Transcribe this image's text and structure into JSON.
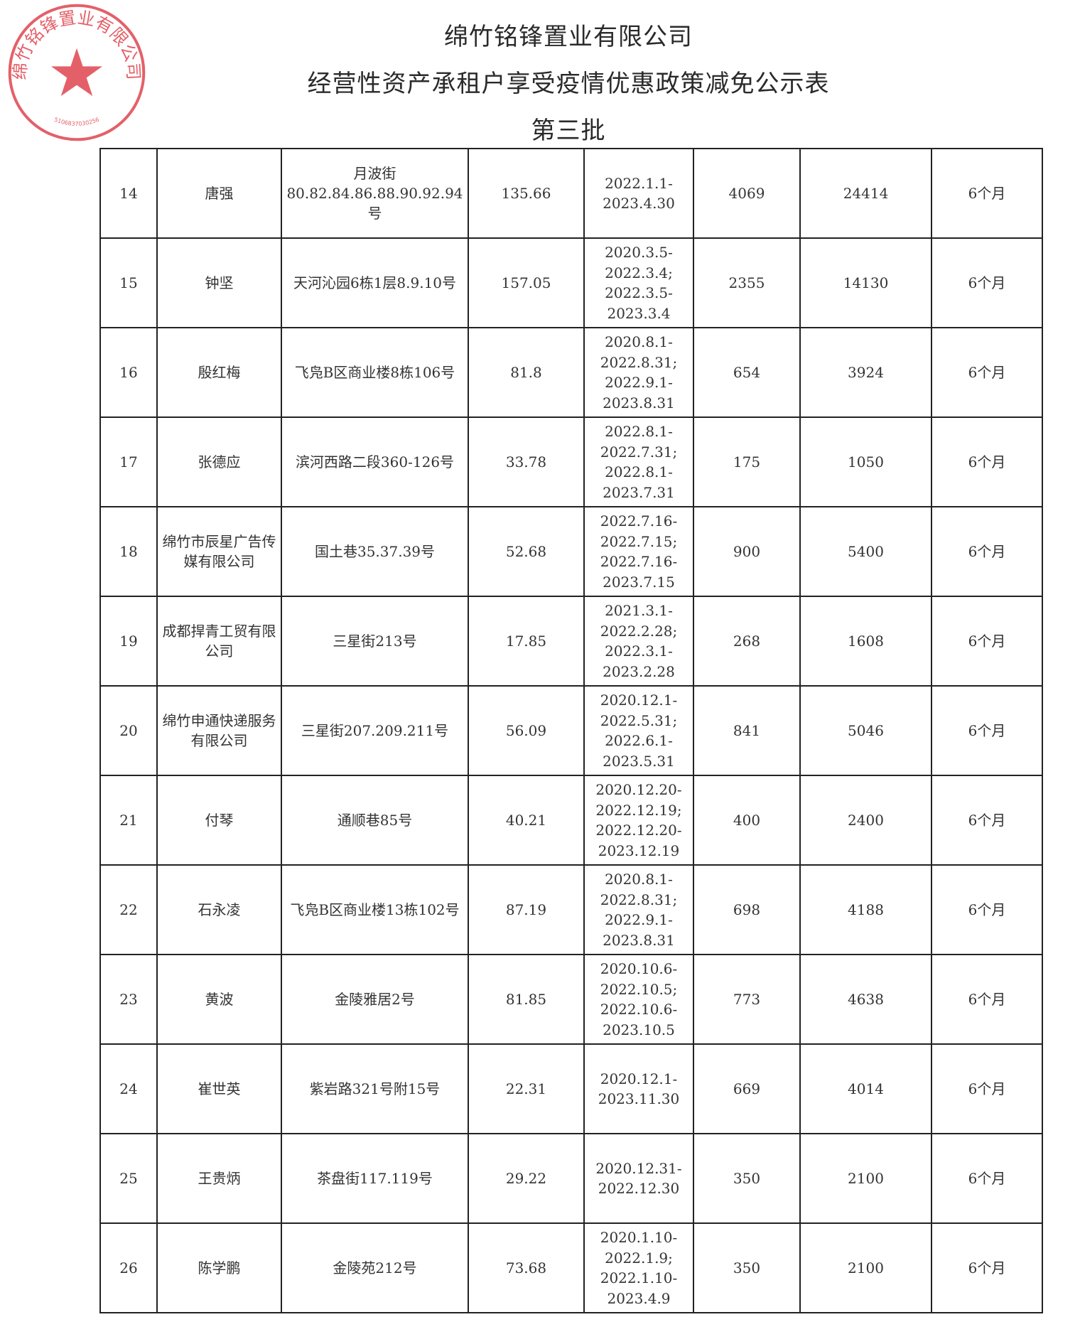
{
  "header": {
    "company": "绵竹铭锋置业有限公司",
    "title": "经营性资产承租户享受疫情优惠政策减免公示表",
    "batch": "第三批"
  },
  "stamp": {
    "text": "绵竹铭锋置业有限公司",
    "code": "5106837030256",
    "color": "#e0454f"
  },
  "rows": [
    {
      "no": "14",
      "tenant": "唐强",
      "address": "月波街80.82.84.86.88.90.92.94号",
      "area": "135.66",
      "period": [
        "2022.1.1-",
        "2023.4.30"
      ],
      "monthly": "4069",
      "total": "24414",
      "months": "6个月"
    },
    {
      "no": "15",
      "tenant": "钟坚",
      "address": "天河沁园6栋1层8.9.10号",
      "area": "157.05",
      "period": [
        "2020.3.5-",
        "2022.3.4;",
        "2022.3.5-",
        "2023.3.4"
      ],
      "monthly": "2355",
      "total": "14130",
      "months": "6个月"
    },
    {
      "no": "16",
      "tenant": "殷红梅",
      "address": "飞凫B区商业楼8栋106号",
      "area": "81.8",
      "period": [
        "2020.8.1-",
        "2022.8.31;",
        "2022.9.1-",
        "2023.8.31"
      ],
      "monthly": "654",
      "total": "3924",
      "months": "6个月"
    },
    {
      "no": "17",
      "tenant": "张德应",
      "address": "滨河西路二段360-126号",
      "area": "33.78",
      "period": [
        "2022.8.1-",
        "2022.7.31;",
        "2022.8.1-",
        "2023.7.31"
      ],
      "monthly": "175",
      "total": "1050",
      "months": "6个月"
    },
    {
      "no": "18",
      "tenant": "绵竹市辰星广告传媒有限公司",
      "address": "国土巷35.37.39号",
      "area": "52.68",
      "period": [
        "2022.7.16-",
        "2022.7.15;",
        "2022.7.16-",
        "2023.7.15"
      ],
      "monthly": "900",
      "total": "5400",
      "months": "6个月"
    },
    {
      "no": "19",
      "tenant": "成都捍青工贸有限公司",
      "address": "三星街213号",
      "area": "17.85",
      "period": [
        "2021.3.1-",
        "2022.2.28;",
        "2022.3.1-",
        "2023.2.28"
      ],
      "monthly": "268",
      "total": "1608",
      "months": "6个月"
    },
    {
      "no": "20",
      "tenant": "绵竹申通快递服务有限公司",
      "address": "三星街207.209.211号",
      "area": "56.09",
      "period": [
        "2020.12.1-",
        "2022.5.31;",
        "2022.6.1-",
        "2023.5.31"
      ],
      "monthly": "841",
      "total": "5046",
      "months": "6个月"
    },
    {
      "no": "21",
      "tenant": "付琴",
      "address": "通顺巷85号",
      "area": "40.21",
      "period": [
        "2020.12.20-",
        "2022.12.19;",
        "2022.12.20-",
        "2023.12.19"
      ],
      "monthly": "400",
      "total": "2400",
      "months": "6个月"
    },
    {
      "no": "22",
      "tenant": "石永凌",
      "address": "飞凫B区商业楼13栋102号",
      "area": "87.19",
      "period": [
        "2020.8.1-",
        "2022.8.31;",
        "2022.9.1-",
        "2023.8.31"
      ],
      "monthly": "698",
      "total": "4188",
      "months": "6个月"
    },
    {
      "no": "23",
      "tenant": "黄波",
      "address": "金陵雅居2号",
      "area": "81.85",
      "period": [
        "2020.10.6-",
        "2022.10.5;",
        "2022.10.6-",
        "2023.10.5"
      ],
      "monthly": "773",
      "total": "4638",
      "months": "6个月"
    },
    {
      "no": "24",
      "tenant": "崔世英",
      "address": "紫岩路321号附15号",
      "area": "22.31",
      "period": [
        "2020.12.1-",
        "2023.11.30"
      ],
      "monthly": "669",
      "total": "4014",
      "months": "6个月"
    },
    {
      "no": "25",
      "tenant": "王贵炳",
      "address": "茶盘街117.119号",
      "area": "29.22",
      "period": [
        "2020.12.31-",
        "2022.12.30"
      ],
      "monthly": "350",
      "total": "2100",
      "months": "6个月"
    },
    {
      "no": "26",
      "tenant": "陈学鹏",
      "address": "金陵苑212号",
      "area": "73.68",
      "period": [
        "2020.1.10-",
        "2022.1.9;",
        "2022.1.10-",
        "2023.4.9"
      ],
      "monthly": "350",
      "total": "2100",
      "months": "6个月"
    }
  ]
}
